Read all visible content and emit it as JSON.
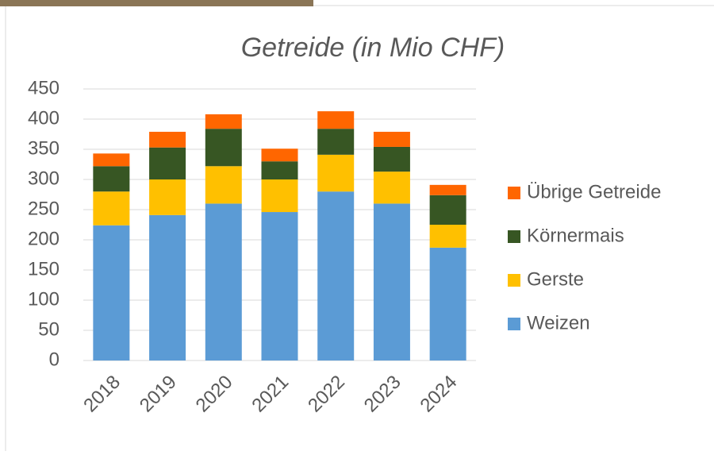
{
  "chart_data": {
    "type": "stacked_bar",
    "title": "Getreide (in Mio CHF)",
    "categories": [
      "2018",
      "2019",
      "2020",
      "2021",
      "2022",
      "2023",
      "2024"
    ],
    "series": [
      {
        "name": "Weizen",
        "color": "#5b9bd5",
        "values": [
          224,
          241,
          260,
          246,
          280,
          260,
          187
        ]
      },
      {
        "name": "Gerste",
        "color": "#ffc000",
        "values": [
          56,
          59,
          62,
          54,
          61,
          53,
          38
        ]
      },
      {
        "name": "Körnermais",
        "color": "#375623",
        "values": [
          42,
          53,
          62,
          30,
          43,
          41,
          49
        ]
      },
      {
        "name": "Übrige Getreide",
        "color": "#ff6600",
        "values": [
          21,
          26,
          24,
          21,
          29,
          25,
          17
        ]
      }
    ],
    "ylim": [
      0,
      450
    ],
    "yticks": [
      0,
      50,
      100,
      150,
      200,
      250,
      300,
      350,
      400,
      450
    ],
    "grid": true,
    "legend": "right"
  }
}
